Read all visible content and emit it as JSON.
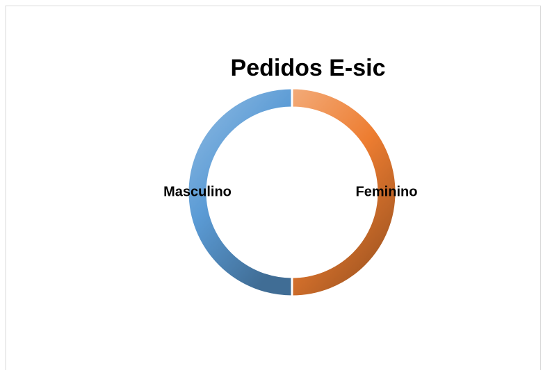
{
  "chart_data": {
    "type": "donut",
    "title": "Pedidos E-sic",
    "categories": [
      "Feminino",
      "Masculino"
    ],
    "values": [
      50,
      50
    ],
    "colors": [
      "#ed7d31",
      "#5b9bd5"
    ],
    "legend": false
  }
}
